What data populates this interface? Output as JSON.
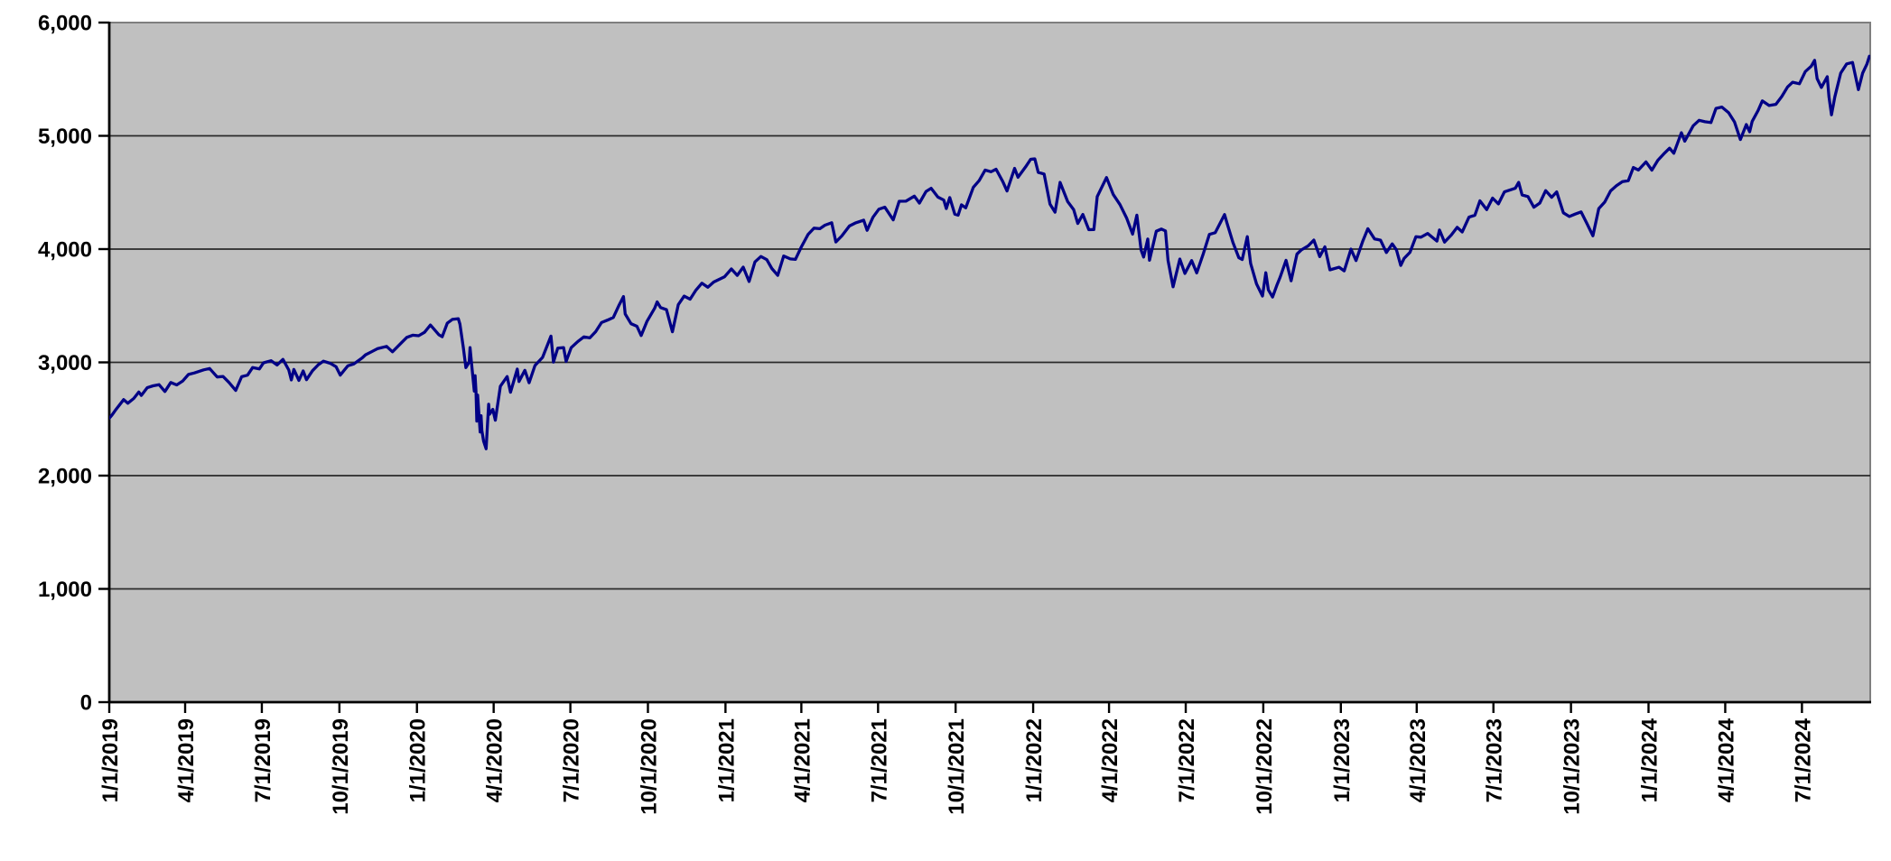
{
  "chart_data": {
    "type": "line",
    "title": "",
    "legend": "none",
    "grid": "horizontal",
    "x_domain": [
      "2019-01-01",
      "2024-09-20"
    ],
    "y_domain": [
      0,
      6000
    ],
    "y_ticks": [
      {
        "value": 0,
        "label": "0"
      },
      {
        "value": 1000,
        "label": "1,000"
      },
      {
        "value": 2000,
        "label": "2,000"
      },
      {
        "value": 3000,
        "label": "3,000"
      },
      {
        "value": 4000,
        "label": "4,000"
      },
      {
        "value": 5000,
        "label": "5,000"
      },
      {
        "value": 6000,
        "label": "6,000"
      }
    ],
    "x_ticks": [
      {
        "date": "2019-01-01",
        "label": "1/1/2019"
      },
      {
        "date": "2019-04-01",
        "label": "4/1/2019"
      },
      {
        "date": "2019-07-01",
        "label": "7/1/2019"
      },
      {
        "date": "2019-10-01",
        "label": "10/1/2019"
      },
      {
        "date": "2020-01-01",
        "label": "1/1/2020"
      },
      {
        "date": "2020-04-01",
        "label": "4/1/2020"
      },
      {
        "date": "2020-07-01",
        "label": "7/1/2020"
      },
      {
        "date": "2020-10-01",
        "label": "10/1/2020"
      },
      {
        "date": "2021-01-01",
        "label": "1/1/2021"
      },
      {
        "date": "2021-04-01",
        "label": "4/1/2021"
      },
      {
        "date": "2021-07-01",
        "label": "7/1/2021"
      },
      {
        "date": "2021-10-01",
        "label": "10/1/2021"
      },
      {
        "date": "2022-01-01",
        "label": "1/1/2022"
      },
      {
        "date": "2022-04-01",
        "label": "4/1/2022"
      },
      {
        "date": "2022-07-01",
        "label": "7/1/2022"
      },
      {
        "date": "2022-10-01",
        "label": "10/1/2022"
      },
      {
        "date": "2023-01-01",
        "label": "1/1/2023"
      },
      {
        "date": "2023-04-01",
        "label": "4/1/2023"
      },
      {
        "date": "2023-07-01",
        "label": "7/1/2023"
      },
      {
        "date": "2023-10-01",
        "label": "10/1/2023"
      },
      {
        "date": "2024-01-01",
        "label": "1/1/2024"
      },
      {
        "date": "2024-04-01",
        "label": "4/1/2024"
      },
      {
        "date": "2024-07-01",
        "label": "7/1/2024"
      }
    ],
    "points": [
      [
        "2019-01-01",
        2507
      ],
      [
        "2019-01-04",
        2532
      ],
      [
        "2019-01-09",
        2585
      ],
      [
        "2019-01-18",
        2671
      ],
      [
        "2019-01-23",
        2639
      ],
      [
        "2019-01-30",
        2681
      ],
      [
        "2019-02-05",
        2738
      ],
      [
        "2019-02-08",
        2708
      ],
      [
        "2019-02-15",
        2776
      ],
      [
        "2019-02-22",
        2793
      ],
      [
        "2019-03-01",
        2803
      ],
      [
        "2019-03-08",
        2743
      ],
      [
        "2019-03-15",
        2822
      ],
      [
        "2019-03-22",
        2801
      ],
      [
        "2019-03-29",
        2834
      ],
      [
        "2019-04-05",
        2893
      ],
      [
        "2019-04-12",
        2907
      ],
      [
        "2019-04-23",
        2934
      ],
      [
        "2019-04-30",
        2946
      ],
      [
        "2019-05-09",
        2871
      ],
      [
        "2019-05-16",
        2876
      ],
      [
        "2019-05-23",
        2822
      ],
      [
        "2019-05-31",
        2752
      ],
      [
        "2019-06-07",
        2873
      ],
      [
        "2019-06-14",
        2887
      ],
      [
        "2019-06-20",
        2954
      ],
      [
        "2019-06-28",
        2942
      ],
      [
        "2019-07-03",
        2996
      ],
      [
        "2019-07-12",
        3014
      ],
      [
        "2019-07-19",
        2977
      ],
      [
        "2019-07-26",
        3026
      ],
      [
        "2019-08-02",
        2932
      ],
      [
        "2019-08-05",
        2845
      ],
      [
        "2019-08-08",
        2938
      ],
      [
        "2019-08-14",
        2841
      ],
      [
        "2019-08-19",
        2924
      ],
      [
        "2019-08-23",
        2847
      ],
      [
        "2019-08-30",
        2926
      ],
      [
        "2019-09-06",
        2979
      ],
      [
        "2019-09-12",
        3010
      ],
      [
        "2019-09-20",
        2992
      ],
      [
        "2019-09-27",
        2962
      ],
      [
        "2019-10-02",
        2888
      ],
      [
        "2019-10-11",
        2970
      ],
      [
        "2019-10-18",
        2986
      ],
      [
        "2019-10-28",
        3039
      ],
      [
        "2019-11-01",
        3067
      ],
      [
        "2019-11-08",
        3093
      ],
      [
        "2019-11-15",
        3120
      ],
      [
        "2019-11-26",
        3141
      ],
      [
        "2019-12-03",
        3093
      ],
      [
        "2019-12-13",
        3169
      ],
      [
        "2019-12-20",
        3221
      ],
      [
        "2019-12-27",
        3240
      ],
      [
        "2020-01-03",
        3235
      ],
      [
        "2020-01-10",
        3265
      ],
      [
        "2020-01-17",
        3330
      ],
      [
        "2020-01-27",
        3244
      ],
      [
        "2020-01-31",
        3226
      ],
      [
        "2020-02-06",
        3346
      ],
      [
        "2020-02-12",
        3379
      ],
      [
        "2020-02-19",
        3386
      ],
      [
        "2020-02-21",
        3338
      ],
      [
        "2020-02-25",
        3128
      ],
      [
        "2020-02-28",
        2954
      ],
      [
        "2020-03-03",
        3003
      ],
      [
        "2020-03-04",
        3130
      ],
      [
        "2020-03-06",
        2972
      ],
      [
        "2020-03-09",
        2746
      ],
      [
        "2020-03-10",
        2882
      ],
      [
        "2020-03-11",
        2741
      ],
      [
        "2020-03-12",
        2481
      ],
      [
        "2020-03-13",
        2711
      ],
      [
        "2020-03-16",
        2386
      ],
      [
        "2020-03-17",
        2529
      ],
      [
        "2020-03-18",
        2398
      ],
      [
        "2020-03-20",
        2305
      ],
      [
        "2020-03-23",
        2237
      ],
      [
        "2020-03-26",
        2630
      ],
      [
        "2020-03-27",
        2541
      ],
      [
        "2020-03-31",
        2585
      ],
      [
        "2020-04-03",
        2489
      ],
      [
        "2020-04-09",
        2790
      ],
      [
        "2020-04-17",
        2875
      ],
      [
        "2020-04-21",
        2736
      ],
      [
        "2020-04-29",
        2940
      ],
      [
        "2020-05-01",
        2831
      ],
      [
        "2020-05-08",
        2930
      ],
      [
        "2020-05-13",
        2820
      ],
      [
        "2020-05-20",
        2972
      ],
      [
        "2020-05-29",
        3044
      ],
      [
        "2020-06-08",
        3232
      ],
      [
        "2020-06-11",
        3002
      ],
      [
        "2020-06-16",
        3125
      ],
      [
        "2020-06-23",
        3131
      ],
      [
        "2020-06-26",
        3009
      ],
      [
        "2020-07-02",
        3130
      ],
      [
        "2020-07-10",
        3185
      ],
      [
        "2020-07-17",
        3225
      ],
      [
        "2020-07-24",
        3216
      ],
      [
        "2020-07-31",
        3271
      ],
      [
        "2020-08-07",
        3351
      ],
      [
        "2020-08-14",
        3373
      ],
      [
        "2020-08-21",
        3397
      ],
      [
        "2020-08-28",
        3508
      ],
      [
        "2020-09-02",
        3581
      ],
      [
        "2020-09-04",
        3427
      ],
      [
        "2020-09-11",
        3341
      ],
      [
        "2020-09-18",
        3319
      ],
      [
        "2020-09-23",
        3237
      ],
      [
        "2020-09-30",
        3363
      ],
      [
        "2020-10-09",
        3477
      ],
      [
        "2020-10-12",
        3534
      ],
      [
        "2020-10-16",
        3484
      ],
      [
        "2020-10-23",
        3465
      ],
      [
        "2020-10-30",
        3270
      ],
      [
        "2020-11-06",
        3509
      ],
      [
        "2020-11-13",
        3585
      ],
      [
        "2020-11-20",
        3558
      ],
      [
        "2020-11-27",
        3638
      ],
      [
        "2020-12-04",
        3699
      ],
      [
        "2020-12-11",
        3663
      ],
      [
        "2020-12-18",
        3709
      ],
      [
        "2020-12-31",
        3756
      ],
      [
        "2021-01-08",
        3825
      ],
      [
        "2021-01-15",
        3768
      ],
      [
        "2021-01-22",
        3841
      ],
      [
        "2021-01-29",
        3714
      ],
      [
        "2021-02-05",
        3887
      ],
      [
        "2021-02-12",
        3935
      ],
      [
        "2021-02-19",
        3907
      ],
      [
        "2021-02-25",
        3829
      ],
      [
        "2021-03-04",
        3768
      ],
      [
        "2021-03-11",
        3939
      ],
      [
        "2021-03-19",
        3913
      ],
      [
        "2021-03-25",
        3909
      ],
      [
        "2021-04-01",
        4020
      ],
      [
        "2021-04-09",
        4129
      ],
      [
        "2021-04-16",
        4185
      ],
      [
        "2021-04-23",
        4180
      ],
      [
        "2021-04-29",
        4211
      ],
      [
        "2021-05-07",
        4233
      ],
      [
        "2021-05-12",
        4063
      ],
      [
        "2021-05-19",
        4116
      ],
      [
        "2021-05-28",
        4204
      ],
      [
        "2021-06-04",
        4230
      ],
      [
        "2021-06-14",
        4255
      ],
      [
        "2021-06-18",
        4166
      ],
      [
        "2021-06-25",
        4281
      ],
      [
        "2021-07-02",
        4352
      ],
      [
        "2021-07-09",
        4370
      ],
      [
        "2021-07-19",
        4258
      ],
      [
        "2021-07-26",
        4422
      ],
      [
        "2021-08-03",
        4423
      ],
      [
        "2021-08-13",
        4468
      ],
      [
        "2021-08-19",
        4406
      ],
      [
        "2021-08-27",
        4509
      ],
      [
        "2021-09-02",
        4537
      ],
      [
        "2021-09-10",
        4459
      ],
      [
        "2021-09-17",
        4433
      ],
      [
        "2021-09-20",
        4358
      ],
      [
        "2021-09-24",
        4455
      ],
      [
        "2021-09-30",
        4308
      ],
      [
        "2021-10-04",
        4300
      ],
      [
        "2021-10-08",
        4391
      ],
      [
        "2021-10-13",
        4364
      ],
      [
        "2021-10-22",
        4545
      ],
      [
        "2021-10-29",
        4605
      ],
      [
        "2021-11-05",
        4698
      ],
      [
        "2021-11-12",
        4683
      ],
      [
        "2021-11-18",
        4705
      ],
      [
        "2021-11-26",
        4595
      ],
      [
        "2021-12-01",
        4513
      ],
      [
        "2021-12-10",
        4712
      ],
      [
        "2021-12-14",
        4634
      ],
      [
        "2021-12-23",
        4726
      ],
      [
        "2021-12-29",
        4793
      ],
      [
        "2022-01-03",
        4797
      ],
      [
        "2022-01-07",
        4677
      ],
      [
        "2022-01-14",
        4663
      ],
      [
        "2022-01-21",
        4398
      ],
      [
        "2022-01-27",
        4326
      ],
      [
        "2022-02-02",
        4589
      ],
      [
        "2022-02-11",
        4419
      ],
      [
        "2022-02-18",
        4349
      ],
      [
        "2022-02-23",
        4226
      ],
      [
        "2022-03-01",
        4306
      ],
      [
        "2022-03-08",
        4171
      ],
      [
        "2022-03-14",
        4173
      ],
      [
        "2022-03-18",
        4463
      ],
      [
        "2022-03-29",
        4632
      ],
      [
        "2022-04-06",
        4481
      ],
      [
        "2022-04-14",
        4393
      ],
      [
        "2022-04-22",
        4272
      ],
      [
        "2022-04-29",
        4132
      ],
      [
        "2022-05-04",
        4300
      ],
      [
        "2022-05-09",
        3991
      ],
      [
        "2022-05-12",
        3930
      ],
      [
        "2022-05-17",
        4089
      ],
      [
        "2022-05-19",
        3901
      ],
      [
        "2022-05-27",
        4158
      ],
      [
        "2022-06-02",
        4177
      ],
      [
        "2022-06-07",
        4160
      ],
      [
        "2022-06-10",
        3901
      ],
      [
        "2022-06-16",
        3667
      ],
      [
        "2022-06-24",
        3912
      ],
      [
        "2022-06-30",
        3785
      ],
      [
        "2022-07-08",
        3899
      ],
      [
        "2022-07-14",
        3790
      ],
      [
        "2022-07-22",
        3962
      ],
      [
        "2022-07-29",
        4130
      ],
      [
        "2022-08-05",
        4145
      ],
      [
        "2022-08-16",
        4305
      ],
      [
        "2022-08-19",
        4228
      ],
      [
        "2022-08-26",
        4058
      ],
      [
        "2022-09-02",
        3924
      ],
      [
        "2022-09-06",
        3908
      ],
      [
        "2022-09-12",
        4110
      ],
      [
        "2022-09-16",
        3873
      ],
      [
        "2022-09-23",
        3693
      ],
      [
        "2022-09-30",
        3586
      ],
      [
        "2022-10-04",
        3791
      ],
      [
        "2022-10-07",
        3640
      ],
      [
        "2022-10-12",
        3577
      ],
      [
        "2022-10-17",
        3678
      ],
      [
        "2022-10-21",
        3753
      ],
      [
        "2022-10-28",
        3901
      ],
      [
        "2022-11-03",
        3720
      ],
      [
        "2022-11-10",
        3956
      ],
      [
        "2022-11-15",
        3992
      ],
      [
        "2022-11-23",
        4027
      ],
      [
        "2022-11-30",
        4080
      ],
      [
        "2022-12-07",
        3934
      ],
      [
        "2022-12-13",
        4020
      ],
      [
        "2022-12-19",
        3817
      ],
      [
        "2022-12-30",
        3840
      ],
      [
        "2023-01-05",
        3808
      ],
      [
        "2023-01-13",
        3999
      ],
      [
        "2023-01-19",
        3899
      ],
      [
        "2023-01-27",
        4071
      ],
      [
        "2023-02-02",
        4180
      ],
      [
        "2023-02-10",
        4090
      ],
      [
        "2023-02-17",
        4079
      ],
      [
        "2023-02-24",
        3970
      ],
      [
        "2023-03-03",
        4046
      ],
      [
        "2023-03-08",
        3992
      ],
      [
        "2023-03-13",
        3856
      ],
      [
        "2023-03-17",
        3917
      ],
      [
        "2023-03-24",
        3971
      ],
      [
        "2023-03-31",
        4109
      ],
      [
        "2023-04-06",
        4105
      ],
      [
        "2023-04-14",
        4138
      ],
      [
        "2023-04-25",
        4071
      ],
      [
        "2023-04-28",
        4169
      ],
      [
        "2023-05-04",
        4061
      ],
      [
        "2023-05-12",
        4124
      ],
      [
        "2023-05-19",
        4192
      ],
      [
        "2023-05-25",
        4151
      ],
      [
        "2023-06-02",
        4282
      ],
      [
        "2023-06-09",
        4299
      ],
      [
        "2023-06-15",
        4426
      ],
      [
        "2023-06-23",
        4348
      ],
      [
        "2023-06-30",
        4450
      ],
      [
        "2023-07-07",
        4399
      ],
      [
        "2023-07-14",
        4505
      ],
      [
        "2023-07-27",
        4537
      ],
      [
        "2023-07-31",
        4589
      ],
      [
        "2023-08-04",
        4478
      ],
      [
        "2023-08-11",
        4464
      ],
      [
        "2023-08-18",
        4370
      ],
      [
        "2023-08-25",
        4406
      ],
      [
        "2023-09-01",
        4516
      ],
      [
        "2023-09-08",
        4457
      ],
      [
        "2023-09-14",
        4505
      ],
      [
        "2023-09-22",
        4320
      ],
      [
        "2023-09-29",
        4288
      ],
      [
        "2023-10-06",
        4309
      ],
      [
        "2023-10-13",
        4328
      ],
      [
        "2023-10-20",
        4224
      ],
      [
        "2023-10-27",
        4117
      ],
      [
        "2023-11-03",
        4358
      ],
      [
        "2023-11-10",
        4415
      ],
      [
        "2023-11-17",
        4514
      ],
      [
        "2023-11-24",
        4559
      ],
      [
        "2023-12-01",
        4595
      ],
      [
        "2023-12-08",
        4604
      ],
      [
        "2023-12-14",
        4720
      ],
      [
        "2023-12-20",
        4698
      ],
      [
        "2023-12-29",
        4770
      ],
      [
        "2024-01-05",
        4697
      ],
      [
        "2024-01-12",
        4784
      ],
      [
        "2024-01-19",
        4840
      ],
      [
        "2024-01-26",
        4891
      ],
      [
        "2024-01-31",
        4846
      ],
      [
        "2024-02-09",
        5027
      ],
      [
        "2024-02-13",
        4953
      ],
      [
        "2024-02-23",
        5089
      ],
      [
        "2024-03-01",
        5137
      ],
      [
        "2024-03-08",
        5124
      ],
      [
        "2024-03-15",
        5117
      ],
      [
        "2024-03-21",
        5242
      ],
      [
        "2024-03-28",
        5254
      ],
      [
        "2024-04-05",
        5204
      ],
      [
        "2024-04-12",
        5123
      ],
      [
        "2024-04-19",
        4967
      ],
      [
        "2024-04-26",
        5100
      ],
      [
        "2024-04-30",
        5036
      ],
      [
        "2024-05-03",
        5128
      ],
      [
        "2024-05-10",
        5223
      ],
      [
        "2024-05-15",
        5308
      ],
      [
        "2024-05-23",
        5268
      ],
      [
        "2024-05-31",
        5278
      ],
      [
        "2024-06-07",
        5347
      ],
      [
        "2024-06-14",
        5432
      ],
      [
        "2024-06-20",
        5473
      ],
      [
        "2024-06-28",
        5460
      ],
      [
        "2024-07-05",
        5567
      ],
      [
        "2024-07-12",
        5615
      ],
      [
        "2024-07-16",
        5667
      ],
      [
        "2024-07-19",
        5505
      ],
      [
        "2024-07-24",
        5427
      ],
      [
        "2024-07-31",
        5522
      ],
      [
        "2024-08-02",
        5346
      ],
      [
        "2024-08-05",
        5186
      ],
      [
        "2024-08-09",
        5344
      ],
      [
        "2024-08-16",
        5554
      ],
      [
        "2024-08-23",
        5635
      ],
      [
        "2024-08-30",
        5648
      ],
      [
        "2024-09-06",
        5408
      ],
      [
        "2024-09-11",
        5554
      ],
      [
        "2024-09-16",
        5633
      ],
      [
        "2024-09-19",
        5703
      ]
    ]
  },
  "colors": {
    "line": "#000086",
    "plot_background": "#c0c0c0",
    "gridline": "#2a2a2a",
    "axis": "#000000",
    "plot_border": "#7f7f7f",
    "page_background": "#ffffff",
    "label_text": "#000000"
  }
}
